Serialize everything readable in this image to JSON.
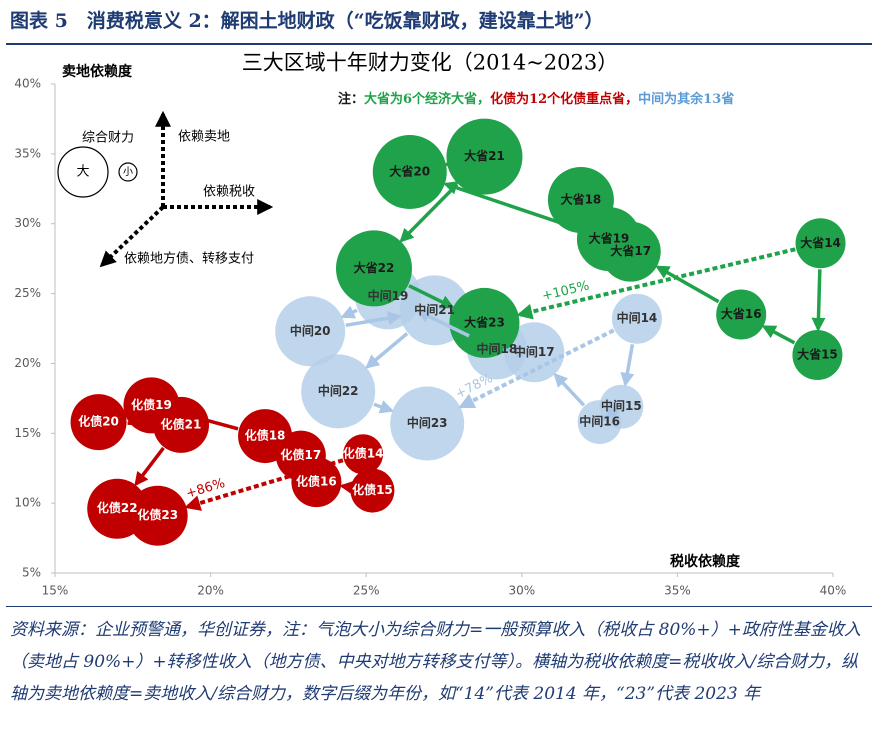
{
  "header": {
    "title": "图表 5　消费税意义 2：解困土地财政（“吃饭靠财政，建设靠土地”）"
  },
  "chart_data": {
    "type": "bubble",
    "title": "三大区域十年财力变化（2014~2023）",
    "x_label": "税收依赖度",
    "y_label": "卖地依赖度",
    "xlim": [
      15,
      40
    ],
    "ylim": [
      5,
      40
    ],
    "xticks": [
      {
        "value": 15,
        "label": "15%"
      },
      {
        "value": 20,
        "label": "20%"
      },
      {
        "value": 25,
        "label": "25%"
      },
      {
        "value": 30,
        "label": "30%"
      },
      {
        "value": 35,
        "label": "35%"
      },
      {
        "value": 40,
        "label": "40%"
      }
    ],
    "yticks": [
      {
        "value": 5,
        "label": "5%"
      },
      {
        "value": 10,
        "label": "10%"
      },
      {
        "value": 15,
        "label": "15%"
      },
      {
        "value": 20,
        "label": "20%"
      },
      {
        "value": 25,
        "label": "25%"
      },
      {
        "value": 30,
        "label": "30%"
      },
      {
        "value": 35,
        "label": "35%"
      },
      {
        "value": 40,
        "label": "40%"
      }
    ],
    "note": [
      {
        "text": "注：",
        "color": "#1a1a1a"
      },
      {
        "text": "大省为6个经济大省，",
        "color": "#1fa24a"
      },
      {
        "text": "化债为12个化债重点省，",
        "color": "#c00000"
      },
      {
        "text": "中间为其余13省",
        "color": "#5b9bd5"
      }
    ],
    "diagram": {
      "size_label": "综合财力",
      "big": "大",
      "small": "小",
      "up": "依赖卖地",
      "right": "依赖税收",
      "down_left": "依赖地方债、转移支付"
    },
    "series": [
      {
        "color": "#b4cfe9",
        "opacity": 0.85,
        "label_color": "#333333",
        "change_label": "+78%",
        "arrow_color": "#a9c6e6",
        "labels": [
          "中间14",
          "中间15",
          "中间16",
          "中间17",
          "中间18",
          "中间19",
          "中间20",
          "中间21",
          "中间22",
          "中间23"
        ],
        "x": [
          33.7,
          33.2,
          32.5,
          30.4,
          29.2,
          25.7,
          23.2,
          27.2,
          24.1,
          26.96
        ],
        "y": [
          23.2,
          16.9,
          15.8,
          20.8,
          21.0,
          24.8,
          22.3,
          23.8,
          18.0,
          15.7
        ],
        "size": [
          25,
          22,
          22,
          30,
          30,
          33,
          35,
          35,
          37,
          37
        ]
      },
      {
        "color": "#c00000",
        "opacity": 1,
        "label_color": "#ffffff",
        "change_label": "+86%",
        "arrow_color": "#c00000",
        "labels": [
          "化债14",
          "化债15",
          "化债16",
          "化债17",
          "化债18",
          "化债19",
          "化债20",
          "化债21",
          "化债22",
          "化债23"
        ],
        "x": [
          24.9,
          25.2,
          23.4,
          22.9,
          21.75,
          18.1,
          16.4,
          19.05,
          17.0,
          18.3
        ],
        "y": [
          13.5,
          10.9,
          11.5,
          13.4,
          14.8,
          17.0,
          15.8,
          15.6,
          9.6,
          9.1
        ],
        "size": [
          20,
          22,
          25,
          25,
          27,
          28,
          28,
          28,
          30,
          30
        ]
      },
      {
        "color": "#1fa24a",
        "opacity": 1,
        "label_color": "#1a1a1a",
        "change_label": "+105%",
        "arrow_color": "#1fa24a",
        "labels": [
          "大省14",
          "大省15",
          "大省16",
          "大省17",
          "大省18",
          "大省19",
          "大省20",
          "大省21",
          "大省22",
          "大省23"
        ],
        "x": [
          39.6,
          39.5,
          37.05,
          33.5,
          31.9,
          32.8,
          26.4,
          28.8,
          25.25,
          28.8
        ],
        "y": [
          28.6,
          20.6,
          23.5,
          28.0,
          31.7,
          28.9,
          33.7,
          34.8,
          26.8,
          22.9
        ],
        "size": [
          25,
          25,
          25,
          30,
          33,
          32,
          37,
          38,
          38,
          35
        ]
      }
    ]
  },
  "source": "资料来源：企业预警通，华创证券，注：气泡大小为综合财力=一般预算收入（税收占 80%+）+政府性基金收入（卖地占 90%+）+转移性收入（地方债、中央对地方转移支付等）。横轴为税收依赖度=税收收入/综合财力，纵轴为卖地依赖度=卖地收入/综合财力，数字后缀为年份，如“14”代表 2014 年，“23”代表 2023 年"
}
